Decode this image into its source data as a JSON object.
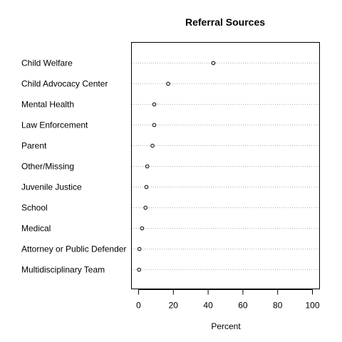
{
  "chart_data": {
    "type": "scatter",
    "title": "Referral Sources",
    "xlabel": "Percent",
    "ylabel": "",
    "xlim": [
      0,
      100
    ],
    "xticks": [
      0,
      20,
      40,
      60,
      80,
      100
    ],
    "grid": "dotted horizontal",
    "categories": [
      "Child Welfare",
      "Child Advocacy Center",
      "Mental Health",
      "Law Enforcement",
      "Parent",
      "Other/Missing",
      "Juvenile Justice",
      "School",
      "Medical",
      "Attorney or Public Defender",
      "Multidisciplinary Team"
    ],
    "values": [
      43,
      17,
      9,
      9,
      8,
      5,
      4.5,
      4,
      2,
      0.5,
      0.3
    ]
  }
}
